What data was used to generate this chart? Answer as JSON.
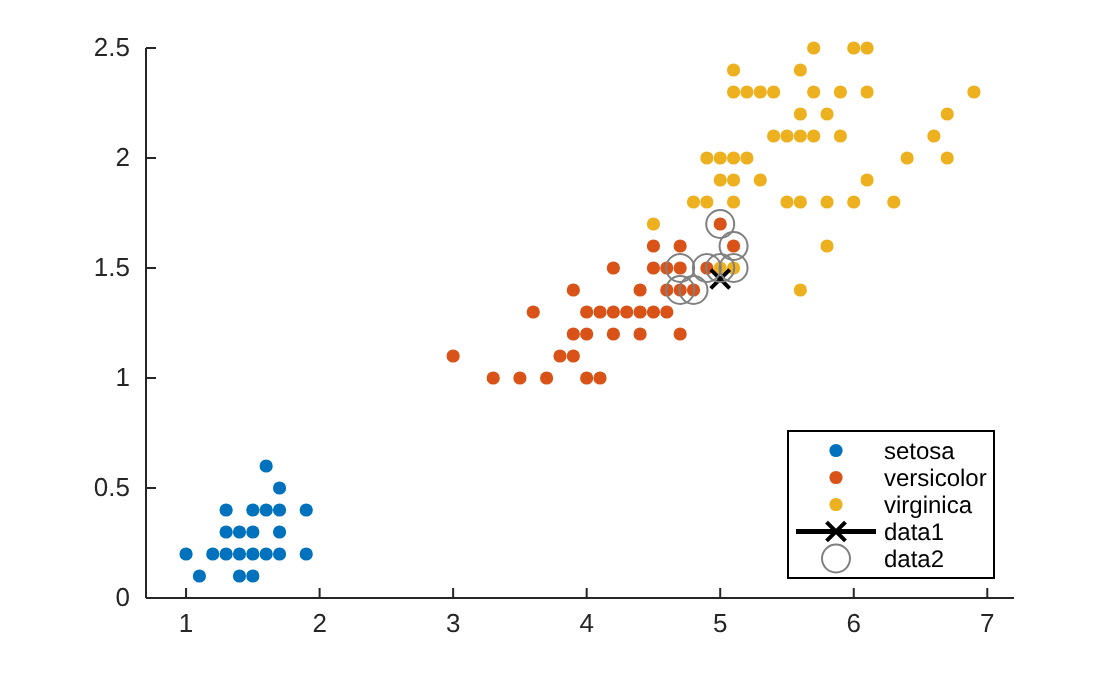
{
  "chart_data": {
    "type": "scatter",
    "xlim": [
      0.7,
      7.2
    ],
    "ylim": [
      0,
      2.5
    ],
    "xticks": [
      1,
      2,
      3,
      4,
      5,
      6,
      7
    ],
    "yticks": [
      0,
      0.5,
      1,
      1.5,
      2,
      2.5
    ],
    "grid": false,
    "legend": "bottom right",
    "series": [
      {
        "name": "setosa",
        "color": "#0072bd",
        "x": [
          1,
          1.1,
          1.2,
          1.3,
          1.3,
          1.3,
          1.4,
          1.4,
          1.4,
          1.5,
          1.5,
          1.5,
          1.5,
          1.6,
          1.6,
          1.6,
          1.7,
          1.7,
          1.7,
          1.7,
          1.9,
          1.9
        ],
        "values": [
          0.2,
          0.1,
          0.2,
          0.2,
          0.3,
          0.4,
          0.1,
          0.2,
          0.3,
          0.1,
          0.2,
          0.3,
          0.4,
          0.2,
          0.4,
          0.6,
          0.2,
          0.3,
          0.4,
          0.5,
          0.2,
          0.4
        ]
      },
      {
        "name": "versicolor",
        "color": "#d95319",
        "x": [
          3,
          3.3,
          3.5,
          3.6,
          3.7,
          3.8,
          3.9,
          3.9,
          3.9,
          4,
          4,
          4,
          4.1,
          4.1,
          4.2,
          4.2,
          4.2,
          4.3,
          4.4,
          4.4,
          4.4,
          4.5,
          4.5,
          4.5,
          4.6,
          4.6,
          4.6,
          4.7,
          4.7,
          4.7,
          4.7,
          4.8,
          4.9,
          5,
          5.1
        ],
        "values": [
          1.1,
          1,
          1,
          1.3,
          1,
          1.1,
          1.1,
          1.2,
          1.4,
          1,
          1.2,
          1.3,
          1,
          1.3,
          1.2,
          1.3,
          1.5,
          1.3,
          1.2,
          1.3,
          1.4,
          1.3,
          1.5,
          1.6,
          1.3,
          1.4,
          1.5,
          1.2,
          1.4,
          1.5,
          1.6,
          1.4,
          1.5,
          1.7,
          1.6
        ]
      },
      {
        "name": "virginica",
        "color": "#edb120",
        "x": [
          4.5,
          4.8,
          4.9,
          4.9,
          5,
          5,
          5,
          5.1,
          5.1,
          5.1,
          5.1,
          5.1,
          5.1,
          5.2,
          5.2,
          5.3,
          5.3,
          5.4,
          5.4,
          5.5,
          5.5,
          5.6,
          5.6,
          5.6,
          5.6,
          5.6,
          5.7,
          5.7,
          5.7,
          5.8,
          5.8,
          5.8,
          5.9,
          5.9,
          6,
          6,
          6.1,
          6.1,
          6.1,
          6.3,
          6.4,
          6.6,
          6.7,
          6.7,
          6.9
        ],
        "values": [
          1.7,
          1.8,
          1.8,
          2,
          1.5,
          1.9,
          2,
          1.5,
          1.8,
          1.9,
          2,
          2.3,
          2.4,
          2,
          2.3,
          1.9,
          2.3,
          2.1,
          2.3,
          1.8,
          2.1,
          1.4,
          1.8,
          2.1,
          2.2,
          2.4,
          2.1,
          2.3,
          2.5,
          1.6,
          1.8,
          2.2,
          2.1,
          2.3,
          1.8,
          2.5,
          1.9,
          2.3,
          2.5,
          1.8,
          2,
          2.1,
          2,
          2.2,
          2.3
        ]
      },
      {
        "name": "data1",
        "type": "line",
        "color": "#000000",
        "marker": "cross",
        "line_style": "solid",
        "x": [
          5
        ],
        "values": [
          1.45
        ]
      },
      {
        "name": "data2",
        "color": "#808080",
        "marker": "circle",
        "x": [
          4.7,
          4.8,
          4.7,
          4.9,
          5,
          5.1,
          5.1,
          5
        ],
        "values": [
          1.4,
          1.4,
          1.5,
          1.5,
          1.5,
          1.5,
          1.6,
          1.7
        ]
      }
    ]
  }
}
